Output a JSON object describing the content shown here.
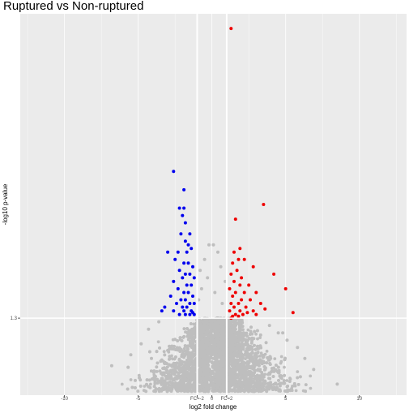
{
  "chart_data": {
    "type": "scatter",
    "title": "Ruptured vs Non-ruptured",
    "xlabel": "log2 fold change",
    "ylabel": "-log10 p-value",
    "xlim": [
      -13,
      13.2
    ],
    "ylim": [
      -0.8,
      9.6
    ],
    "x_ticks": [
      {
        "value": -10,
        "label": "-10"
      },
      {
        "value": -5,
        "label": "-5"
      },
      {
        "value": -1,
        "label": "FC=-2"
      },
      {
        "value": 0,
        "label": "0"
      },
      {
        "value": 1,
        "label": "FC=2"
      },
      {
        "value": 5,
        "label": "5"
      },
      {
        "value": 10,
        "label": "10"
      }
    ],
    "y_ticks": [
      {
        "value": 1.3,
        "label": "1.3"
      }
    ],
    "threshold_lines": {
      "x": [
        -1,
        1
      ],
      "y": 1.3
    },
    "grid": true,
    "legend": "none",
    "colors": {
      "background": "#ebebeb",
      "grid": "#ffffff",
      "not_significant": "#bebebe",
      "down": "#0000ee",
      "up": "#ee0000"
    },
    "series": [
      {
        "group": "down",
        "color": "#0000ee",
        "points": [
          [
            -2.6,
            5.3
          ],
          [
            -1.9,
            4.8
          ],
          [
            -2.2,
            4.3
          ],
          [
            -1.9,
            4.3
          ],
          [
            -2.0,
            4.1
          ],
          [
            -1.8,
            3.9
          ],
          [
            -2.1,
            3.6
          ],
          [
            -1.5,
            3.6
          ],
          [
            -1.8,
            3.4
          ],
          [
            -1.6,
            3.3
          ],
          [
            -1.4,
            3.2
          ],
          [
            -2.3,
            3.1
          ],
          [
            -1.7,
            3.1
          ],
          [
            -3.0,
            3.1
          ],
          [
            -2.5,
            2.9
          ],
          [
            -1.9,
            2.8
          ],
          [
            -1.6,
            2.8
          ],
          [
            -1.3,
            2.7
          ],
          [
            -2.2,
            2.6
          ],
          [
            -1.8,
            2.5
          ],
          [
            -1.5,
            2.5
          ],
          [
            -2.0,
            2.4
          ],
          [
            -1.2,
            2.4
          ],
          [
            -2.6,
            2.3
          ],
          [
            -1.7,
            2.2
          ],
          [
            -1.4,
            2.2
          ],
          [
            -2.3,
            2.1
          ],
          [
            -1.9,
            2.0
          ],
          [
            -1.6,
            2.0
          ],
          [
            -1.3,
            1.9
          ],
          [
            -2.8,
            1.9
          ],
          [
            -2.1,
            1.8
          ],
          [
            -1.8,
            1.8
          ],
          [
            -1.5,
            1.7
          ],
          [
            -1.2,
            1.7
          ],
          [
            -2.4,
            1.7
          ],
          [
            -3.2,
            1.6
          ],
          [
            -2.0,
            1.6
          ],
          [
            -1.7,
            1.6
          ],
          [
            -1.4,
            1.5
          ],
          [
            -2.6,
            1.5
          ],
          [
            -1.9,
            1.5
          ],
          [
            -1.5,
            1.4
          ],
          [
            -1.2,
            1.4
          ],
          [
            -2.2,
            1.4
          ],
          [
            -3.4,
            1.5
          ],
          [
            -1.8,
            1.4
          ],
          [
            -1.3,
            1.45
          ]
        ]
      },
      {
        "group": "up",
        "color": "#ee0000",
        "points": [
          [
            1.3,
            9.2
          ],
          [
            3.5,
            4.4
          ],
          [
            1.6,
            4.0
          ],
          [
            1.9,
            3.2
          ],
          [
            1.5,
            3.1
          ],
          [
            1.8,
            2.9
          ],
          [
            1.4,
            2.8
          ],
          [
            2.2,
            2.9
          ],
          [
            1.7,
            2.6
          ],
          [
            1.3,
            2.5
          ],
          [
            4.2,
            2.5
          ],
          [
            2.0,
            2.4
          ],
          [
            2.8,
            2.7
          ],
          [
            1.5,
            2.3
          ],
          [
            1.9,
            2.2
          ],
          [
            2.5,
            2.2
          ],
          [
            1.2,
            2.1
          ],
          [
            2.2,
            2.0
          ],
          [
            1.6,
            2.0
          ],
          [
            3.0,
            2.0
          ],
          [
            5.0,
            2.1
          ],
          [
            1.4,
            1.9
          ],
          [
            2.0,
            1.8
          ],
          [
            2.6,
            1.8
          ],
          [
            1.8,
            1.7
          ],
          [
            1.3,
            1.7
          ],
          [
            2.3,
            1.6
          ],
          [
            3.3,
            1.7
          ],
          [
            1.5,
            1.6
          ],
          [
            1.9,
            1.5
          ],
          [
            2.8,
            1.5
          ],
          [
            1.2,
            1.5
          ],
          [
            2.1,
            1.4
          ],
          [
            1.6,
            1.4
          ],
          [
            3.0,
            1.4
          ],
          [
            1.4,
            1.35
          ],
          [
            5.5,
            1.45
          ],
          [
            2.4,
            1.45
          ],
          [
            1.8,
            1.35
          ],
          [
            3.6,
            1.55
          ],
          [
            1.3,
            1.3
          ]
        ]
      },
      {
        "group": "not_significant",
        "color": "#bebebe",
        "points": [
          [
            0.1,
            3.3
          ],
          [
            -0.2,
            3.3
          ],
          [
            0.4,
            3.1
          ],
          [
            -0.5,
            2.9
          ],
          [
            0.6,
            2.7
          ],
          [
            -0.8,
            2.6
          ],
          [
            -0.3,
            2.4
          ],
          [
            0.9,
            2.3
          ],
          [
            -0.7,
            2.1
          ],
          [
            0.2,
            2.0
          ],
          [
            -0.9,
            1.8
          ],
          [
            0.7,
            1.7
          ],
          [
            -4.1,
            0.2
          ],
          [
            -6.8,
            0.0
          ],
          [
            -5.5,
            0.3
          ],
          [
            -4.8,
            0.6
          ],
          [
            5.8,
            0.5
          ],
          [
            6.3,
            0.2
          ],
          [
            4.5,
            0.9
          ],
          [
            5.1,
            0.7
          ],
          [
            8.5,
            -0.5
          ],
          [
            6.9,
            -0.1
          ],
          [
            -4.3,
            1.0
          ],
          [
            3.9,
            1.1
          ],
          [
            -3.6,
            1.2
          ],
          [
            4.8,
            0.9
          ],
          [
            -5.2,
            -0.4
          ],
          [
            6.0,
            -0.3
          ]
        ]
      }
    ],
    "background_cloud": {
      "group": "not_significant",
      "color": "#bebebe",
      "x_range": [
        -7.0,
        8.6
      ],
      "y_range": [
        -0.7,
        1.3
      ]
    }
  }
}
